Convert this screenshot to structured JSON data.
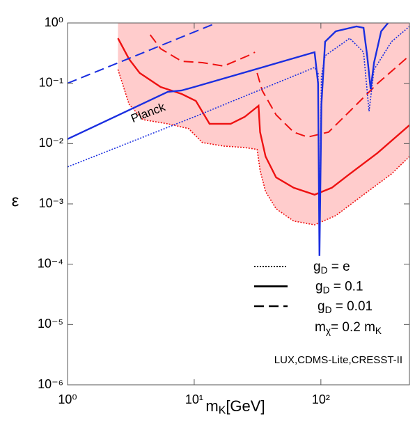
{
  "chart_data": {
    "type": "line",
    "xscale": "log",
    "yscale": "log",
    "xlim": [
      1,
      500
    ],
    "ylim": [
      1e-06,
      1
    ],
    "xticks": [
      {
        "value": 1,
        "label": "10⁰"
      },
      {
        "value": 10,
        "label": "10¹"
      },
      {
        "value": 100,
        "label": "10²"
      }
    ],
    "yticks": [
      {
        "value": 1e-06,
        "label": "10⁻⁶"
      },
      {
        "value": 1e-05,
        "label": "10⁻⁵"
      },
      {
        "value": 0.0001,
        "label": "10⁻⁴"
      },
      {
        "value": 0.001,
        "label": "10⁻³"
      },
      {
        "value": 0.01,
        "label": "10⁻²"
      },
      {
        "value": 0.1,
        "label": "10⁻¹"
      },
      {
        "value": 1,
        "label": "10⁰"
      }
    ],
    "x_label": [
      "m",
      "K",
      "[GeV]"
    ],
    "y_label": "ε",
    "fill_color": "#ffcccc",
    "series": [
      {
        "color": "#ee1111",
        "dash": "dotted",
        "fill": true,
        "x": [
          2.5,
          3.06,
          3.95,
          6.17,
          9.03,
          11.6,
          17.1,
          25,
          31.4,
          33.1,
          36.6,
          44.3,
          60.9,
          89.2,
          131,
          217,
          361,
          500
        ],
        "values": [
          0.169,
          0.0448,
          0.0249,
          0.0213,
          0.0177,
          0.0104,
          0.0091,
          0.0086,
          0.008,
          0.0036,
          0.0016,
          0.00083,
          0.00052,
          0.00045,
          0.00064,
          0.00142,
          0.00314,
          0.0061
        ]
      },
      {
        "color": "#ee1111",
        "dash": "solid",
        "x": [
          2.5,
          3.06,
          3.71,
          5.43,
          7.96,
          10.3,
          13.2,
          19.4,
          25,
          32.2,
          33.1,
          36.6,
          44.3,
          60.9,
          89.2,
          122,
          169,
          280,
          500
        ],
        "values": [
          0.557,
          0.251,
          0.148,
          0.0869,
          0.0666,
          0.051,
          0.0213,
          0.0213,
          0.0277,
          0.0424,
          0.0155,
          0.0061,
          0.00275,
          0.00185,
          0.00142,
          0.00185,
          0.00314,
          0.007,
          0.0202
        ]
      },
      {
        "color": "#ee1111",
        "dash": "dashed",
        "x": [
          4.49,
          5.43,
          7.96,
          11.6,
          17.1,
          26.6,
          30.2,
          31,
          31.4,
          34.4,
          44.3,
          60.9,
          78.6,
          115,
          169,
          280,
          500
        ],
        "values": [
          0.637,
          0.374,
          0.232,
          0.22,
          0.193,
          0.287,
          0.328,
          null,
          0.148,
          0.076,
          0.03,
          0.0155,
          0.0128,
          0.0155,
          0.0343,
          0.099,
          0.287
        ]
      },
      {
        "color": "#1a2ee0",
        "dash": "dashed",
        "x": [
          1,
          15
        ],
        "values": [
          0.1,
          1
        ]
      },
      {
        "color": "#1a2ee0",
        "dash": "solid",
        "x": [
          1,
          6.17,
          7.96,
          10,
          78.6,
          89.2,
          95,
          97.5,
          101,
          108,
          131,
          191,
          217,
          232,
          247,
          263,
          299,
          339
        ],
        "values": [
          0.0119,
          0.0721,
          0.076,
          0.0869,
          0.303,
          0.328,
          0.099,
          0.000137,
          0.0448,
          0.489,
          0.727,
          0.876,
          0.83,
          0.287,
          0.0802,
          0.22,
          0.727,
          1
        ]
      },
      {
        "color": "#1a2ee0",
        "dash": "dotted",
        "x": [
          1,
          10,
          89.2,
          95,
          97.5,
          101,
          108,
          169,
          217,
          240,
          263,
          361,
          500
        ],
        "values": [
          0.0041,
          0.0277,
          0.183,
          0.148,
          0.000169,
          0.129,
          0.287,
          0.557,
          0.328,
          0.0343,
          0.169,
          0.489,
          0.876
        ]
      }
    ],
    "annotation": {
      "text": "Planck",
      "color": "#1a2ee0"
    },
    "legend": [
      {
        "dash": "dotted",
        "label": [
          "g",
          "D",
          " = e"
        ]
      },
      {
        "dash": "solid",
        "label": [
          "g",
          "D",
          " = 0.1"
        ]
      },
      {
        "dash": "dashed",
        "label": [
          "g",
          "D",
          " = 0.01"
        ]
      }
    ],
    "note": [
      "m",
      "χ",
      "= 0.2 m",
      "K"
    ],
    "experiments": {
      "text": "LUX,CDMS-Lite,CRESST-II",
      "color": "#ee1111"
    }
  }
}
